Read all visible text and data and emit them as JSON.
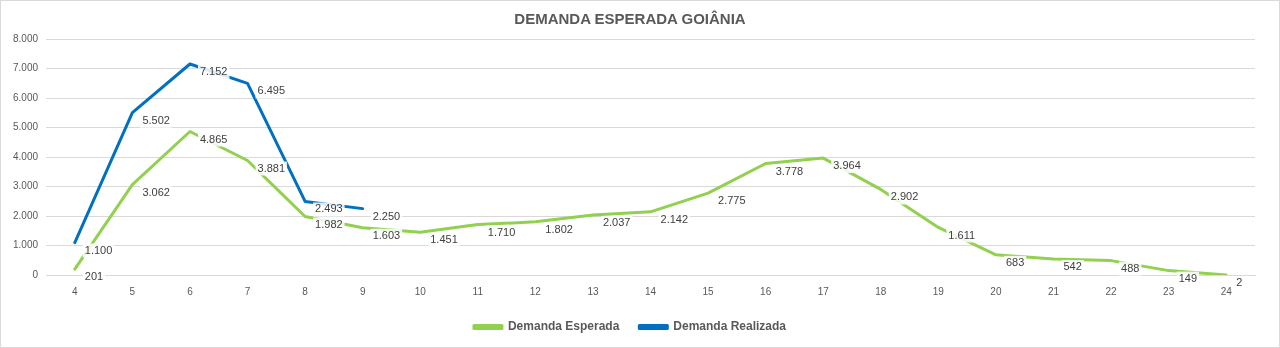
{
  "chart_data": {
    "type": "line",
    "title": "DEMANDA ESPERADA GOIÂNIA",
    "categories": [
      "4",
      "5",
      "6",
      "7",
      "8",
      "9",
      "10",
      "11",
      "12",
      "13",
      "14",
      "15",
      "16",
      "17",
      "18",
      "19",
      "20",
      "21",
      "22",
      "23",
      "24"
    ],
    "series": [
      {
        "name": "Demanda Esperada",
        "color": "#92d050",
        "values": [
          201,
          3062,
          4865,
          3881,
          1982,
          1603,
          1451,
          1710,
          1802,
          2037,
          2142,
          2775,
          3778,
          3964,
          2902,
          1611,
          683,
          542,
          488,
          149,
          2
        ],
        "value_labels": [
          "201",
          "3.062",
          "4.865",
          "3.881",
          "1.982",
          "1.603",
          "1.451",
          "1.710",
          "1.802",
          "2.037",
          "2.142",
          "2.775",
          "3.778",
          "3.964",
          "2.902",
          "1.611",
          "683",
          "542",
          "488",
          "149",
          "2"
        ]
      },
      {
        "name": "Demanda Realizada",
        "color": "#0070c0",
        "values": [
          1100,
          5502,
          7152,
          6495,
          2493,
          2250,
          null,
          null,
          null,
          null,
          null,
          null,
          null,
          null,
          null,
          null,
          null,
          null,
          null,
          null,
          null
        ],
        "value_labels": [
          "1.100",
          "5.502",
          "7.152",
          "6.495",
          "2.493",
          "2.250",
          null,
          null,
          null,
          null,
          null,
          null,
          null,
          null,
          null,
          null,
          null,
          null,
          null,
          null,
          null
        ]
      }
    ],
    "ylim": [
      0,
      8000
    ],
    "yticks": [
      {
        "value": 0,
        "label": "0"
      },
      {
        "value": 1000,
        "label": "1.000"
      },
      {
        "value": 2000,
        "label": "2.000"
      },
      {
        "value": 3000,
        "label": "3.000"
      },
      {
        "value": 4000,
        "label": "4.000"
      },
      {
        "value": 5000,
        "label": "5.000"
      },
      {
        "value": 6000,
        "label": "6.000"
      },
      {
        "value": 7000,
        "label": "7.000"
      },
      {
        "value": 8000,
        "label": "8.000"
      }
    ],
    "grid": "y",
    "legend": "bottom",
    "marker": "none",
    "line_style": "solid"
  }
}
